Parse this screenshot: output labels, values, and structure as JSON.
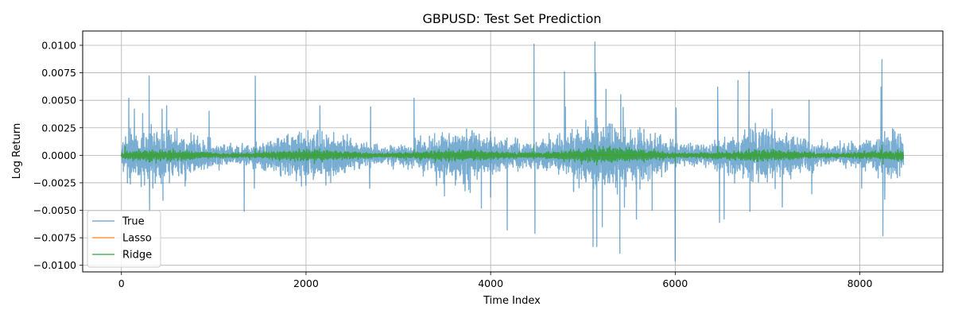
{
  "chart_data": {
    "type": "line",
    "title": "GBPUSD: Test Set Prediction",
    "xlabel": "Time Index",
    "ylabel": "Log Return",
    "xlim": [
      -420,
      8900
    ],
    "ylim": [
      -0.0106,
      0.0113
    ],
    "x_ticks": [
      0,
      2000,
      4000,
      6000,
      8000
    ],
    "x_tick_labels": [
      "0",
      "2000",
      "4000",
      "6000",
      "8000"
    ],
    "y_ticks": [
      -0.01,
      -0.0075,
      -0.005,
      -0.0025,
      0.0,
      0.0025,
      0.005,
      0.0075,
      0.01
    ],
    "y_tick_labels": [
      "−0.0100",
      "−0.0075",
      "−0.0050",
      "−0.0025",
      "0.0000",
      "0.0025",
      "0.0050",
      "0.0075",
      "0.0100"
    ],
    "grid": true,
    "legend_position": "lower-left",
    "n_points": 8474,
    "series": [
      {
        "name": "True",
        "color": "#1f77b4",
        "opacity": 0.6,
        "base_amplitude": 0.0008,
        "spikes": [
          {
            "x": 45,
            "y": 0.0017
          },
          {
            "x": 65,
            "y": -0.0025
          },
          {
            "x": 80,
            "y": 0.0052
          },
          {
            "x": 140,
            "y": 0.0042
          },
          {
            "x": 230,
            "y": 0.0038
          },
          {
            "x": 250,
            "y": -0.0027
          },
          {
            "x": 300,
            "y": 0.0072
          },
          {
            "x": 305,
            "y": -0.0051
          },
          {
            "x": 340,
            "y": -0.003
          },
          {
            "x": 440,
            "y": 0.0042
          },
          {
            "x": 450,
            "y": -0.0041
          },
          {
            "x": 490,
            "y": 0.0045
          },
          {
            "x": 520,
            "y": -0.0025
          },
          {
            "x": 690,
            "y": -0.0028
          },
          {
            "x": 950,
            "y": 0.004
          },
          {
            "x": 1330,
            "y": -0.0051
          },
          {
            "x": 1450,
            "y": 0.0072
          },
          {
            "x": 1440,
            "y": -0.003
          },
          {
            "x": 1950,
            "y": -0.0028
          },
          {
            "x": 2150,
            "y": 0.0045
          },
          {
            "x": 2700,
            "y": 0.0044
          },
          {
            "x": 2690,
            "y": -0.003
          },
          {
            "x": 3170,
            "y": 0.0052
          },
          {
            "x": 3500,
            "y": -0.0037
          },
          {
            "x": 3900,
            "y": -0.0048
          },
          {
            "x": 4000,
            "y": -0.0038
          },
          {
            "x": 4180,
            "y": -0.0068
          },
          {
            "x": 4470,
            "y": 0.0101
          },
          {
            "x": 4480,
            "y": -0.0071
          },
          {
            "x": 4800,
            "y": 0.0076
          },
          {
            "x": 4810,
            "y": 0.0044
          },
          {
            "x": 4900,
            "y": -0.0033
          },
          {
            "x": 5110,
            "y": -0.0083
          },
          {
            "x": 5130,
            "y": 0.0103
          },
          {
            "x": 5140,
            "y": 0.0075
          },
          {
            "x": 5150,
            "y": -0.0083
          },
          {
            "x": 5210,
            "y": -0.0065
          },
          {
            "x": 5250,
            "y": 0.006
          },
          {
            "x": 5400,
            "y": -0.0089
          },
          {
            "x": 5410,
            "y": 0.0055
          },
          {
            "x": 5450,
            "y": -0.0047
          },
          {
            "x": 5580,
            "y": -0.0058
          },
          {
            "x": 5750,
            "y": -0.005
          },
          {
            "x": 6000,
            "y": -0.0096
          },
          {
            "x": 6010,
            "y": 0.0043
          },
          {
            "x": 6460,
            "y": 0.0062
          },
          {
            "x": 6480,
            "y": -0.0061
          },
          {
            "x": 6530,
            "y": -0.0058
          },
          {
            "x": 6680,
            "y": 0.0068
          },
          {
            "x": 6800,
            "y": 0.0076
          },
          {
            "x": 6810,
            "y": -0.0051
          },
          {
            "x": 7050,
            "y": 0.0042
          },
          {
            "x": 7160,
            "y": -0.0047
          },
          {
            "x": 7450,
            "y": 0.005
          },
          {
            "x": 7480,
            "y": -0.0035
          },
          {
            "x": 8020,
            "y": -0.003
          },
          {
            "x": 8240,
            "y": 0.0087
          },
          {
            "x": 8250,
            "y": -0.0073
          },
          {
            "x": 8230,
            "y": 0.0062
          },
          {
            "x": 8270,
            "y": -0.004
          }
        ]
      },
      {
        "name": "Lasso",
        "color": "#ff7f0e",
        "opacity": 0.8,
        "constant_value": 0.0
      },
      {
        "name": "Ridge",
        "color": "#2ca02c",
        "opacity": 0.8,
        "base_amplitude": 0.00018,
        "spikes": [
          {
            "x": 40,
            "y": 0.0008
          },
          {
            "x": 300,
            "y": -0.0006
          },
          {
            "x": 1450,
            "y": 0.0006
          },
          {
            "x": 3170,
            "y": 0.0005
          },
          {
            "x": 4470,
            "y": 0.001
          },
          {
            "x": 4800,
            "y": -0.0006
          },
          {
            "x": 5130,
            "y": 0.0009
          },
          {
            "x": 5150,
            "y": -0.0009
          },
          {
            "x": 5400,
            "y": 0.0007
          },
          {
            "x": 6000,
            "y": -0.0007
          },
          {
            "x": 6460,
            "y": 0.0008
          },
          {
            "x": 6800,
            "y": 0.0006
          },
          {
            "x": 8240,
            "y": 0.0009
          },
          {
            "x": 8250,
            "y": -0.0008
          }
        ]
      }
    ]
  }
}
